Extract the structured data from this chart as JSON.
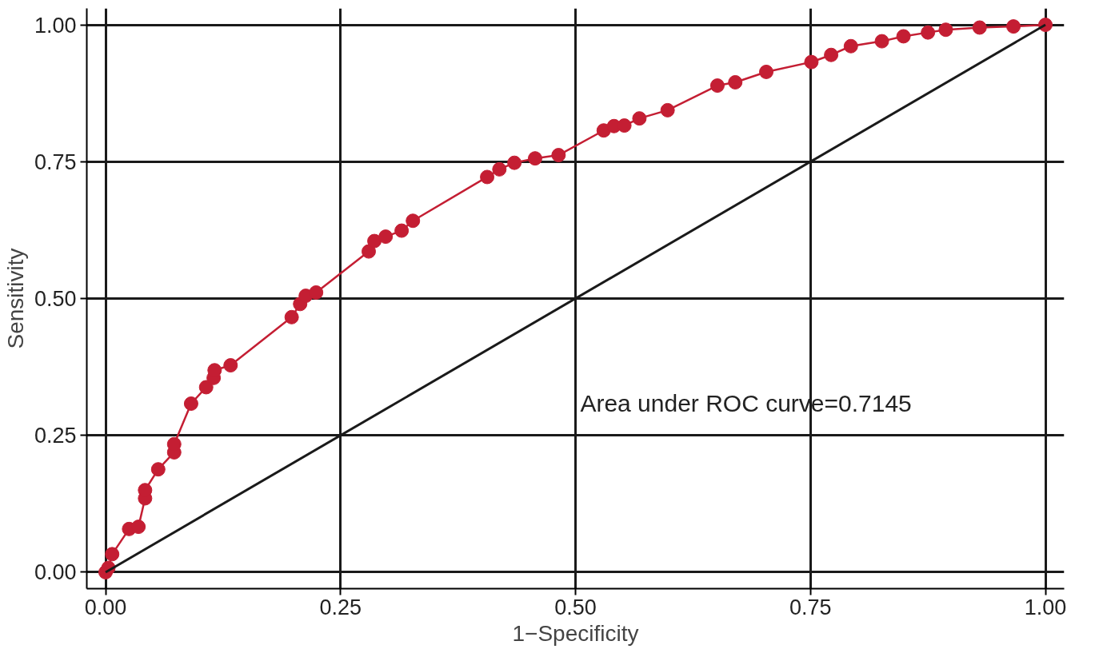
{
  "chart_data": {
    "type": "line",
    "xlabel": "1−Specificity",
    "ylabel": "Sensitivity",
    "xlim": [
      -0.02,
      1.02
    ],
    "ylim": [
      -0.03,
      1.03
    ],
    "xticks": [
      {
        "value": 0,
        "label": "0.00"
      },
      {
        "value": 0.25,
        "label": "0.25"
      },
      {
        "value": 0.5,
        "label": "0.50"
      },
      {
        "value": 0.75,
        "label": "0.75"
      },
      {
        "value": 1,
        "label": "1.00"
      }
    ],
    "yticks": [
      {
        "value": 0,
        "label": "0.00"
      },
      {
        "value": 0.25,
        "label": "0.25"
      },
      {
        "value": 0.5,
        "label": "0.50"
      },
      {
        "value": 0.75,
        "label": "0.75"
      },
      {
        "value": 1,
        "label": "1.00"
      }
    ],
    "grid": true,
    "series": [
      {
        "color": "#c41e33",
        "marker": "circle",
        "x": [
          0,
          0.003,
          0.007,
          0.025,
          0.035,
          0.042,
          0.042,
          0.056,
          0.073,
          0.073,
          0.091,
          0.107,
          0.115,
          0.116,
          0.133,
          0.198,
          0.207,
          0.213,
          0.224,
          0.28,
          0.286,
          0.298,
          0.315,
          0.327,
          0.406,
          0.419,
          0.435,
          0.457,
          0.482,
          0.53,
          0.541,
          0.552,
          0.568,
          0.598,
          0.651,
          0.67,
          0.703,
          0.751,
          0.772,
          0.793,
          0.826,
          0.849,
          0.875,
          0.894,
          0.93,
          0.966,
          1
        ],
        "values": [
          0,
          0.008,
          0.033,
          0.079,
          0.083,
          0.135,
          0.15,
          0.188,
          0.219,
          0.234,
          0.308,
          0.338,
          0.355,
          0.369,
          0.378,
          0.466,
          0.49,
          0.505,
          0.511,
          0.586,
          0.605,
          0.613,
          0.624,
          0.642,
          0.722,
          0.736,
          0.748,
          0.756,
          0.762,
          0.807,
          0.815,
          0.816,
          0.829,
          0.844,
          0.889,
          0.895,
          0.914,
          0.932,
          0.945,
          0.961,
          0.97,
          0.979,
          0.986,
          0.991,
          0.995,
          0.997,
          1
        ]
      },
      {
        "color": "#1a1a1a",
        "marker": "none",
        "x": [
          0,
          1
        ],
        "values": [
          0,
          1
        ]
      }
    ],
    "annotations": [
      "Area under ROC curve=0.7145"
    ]
  }
}
